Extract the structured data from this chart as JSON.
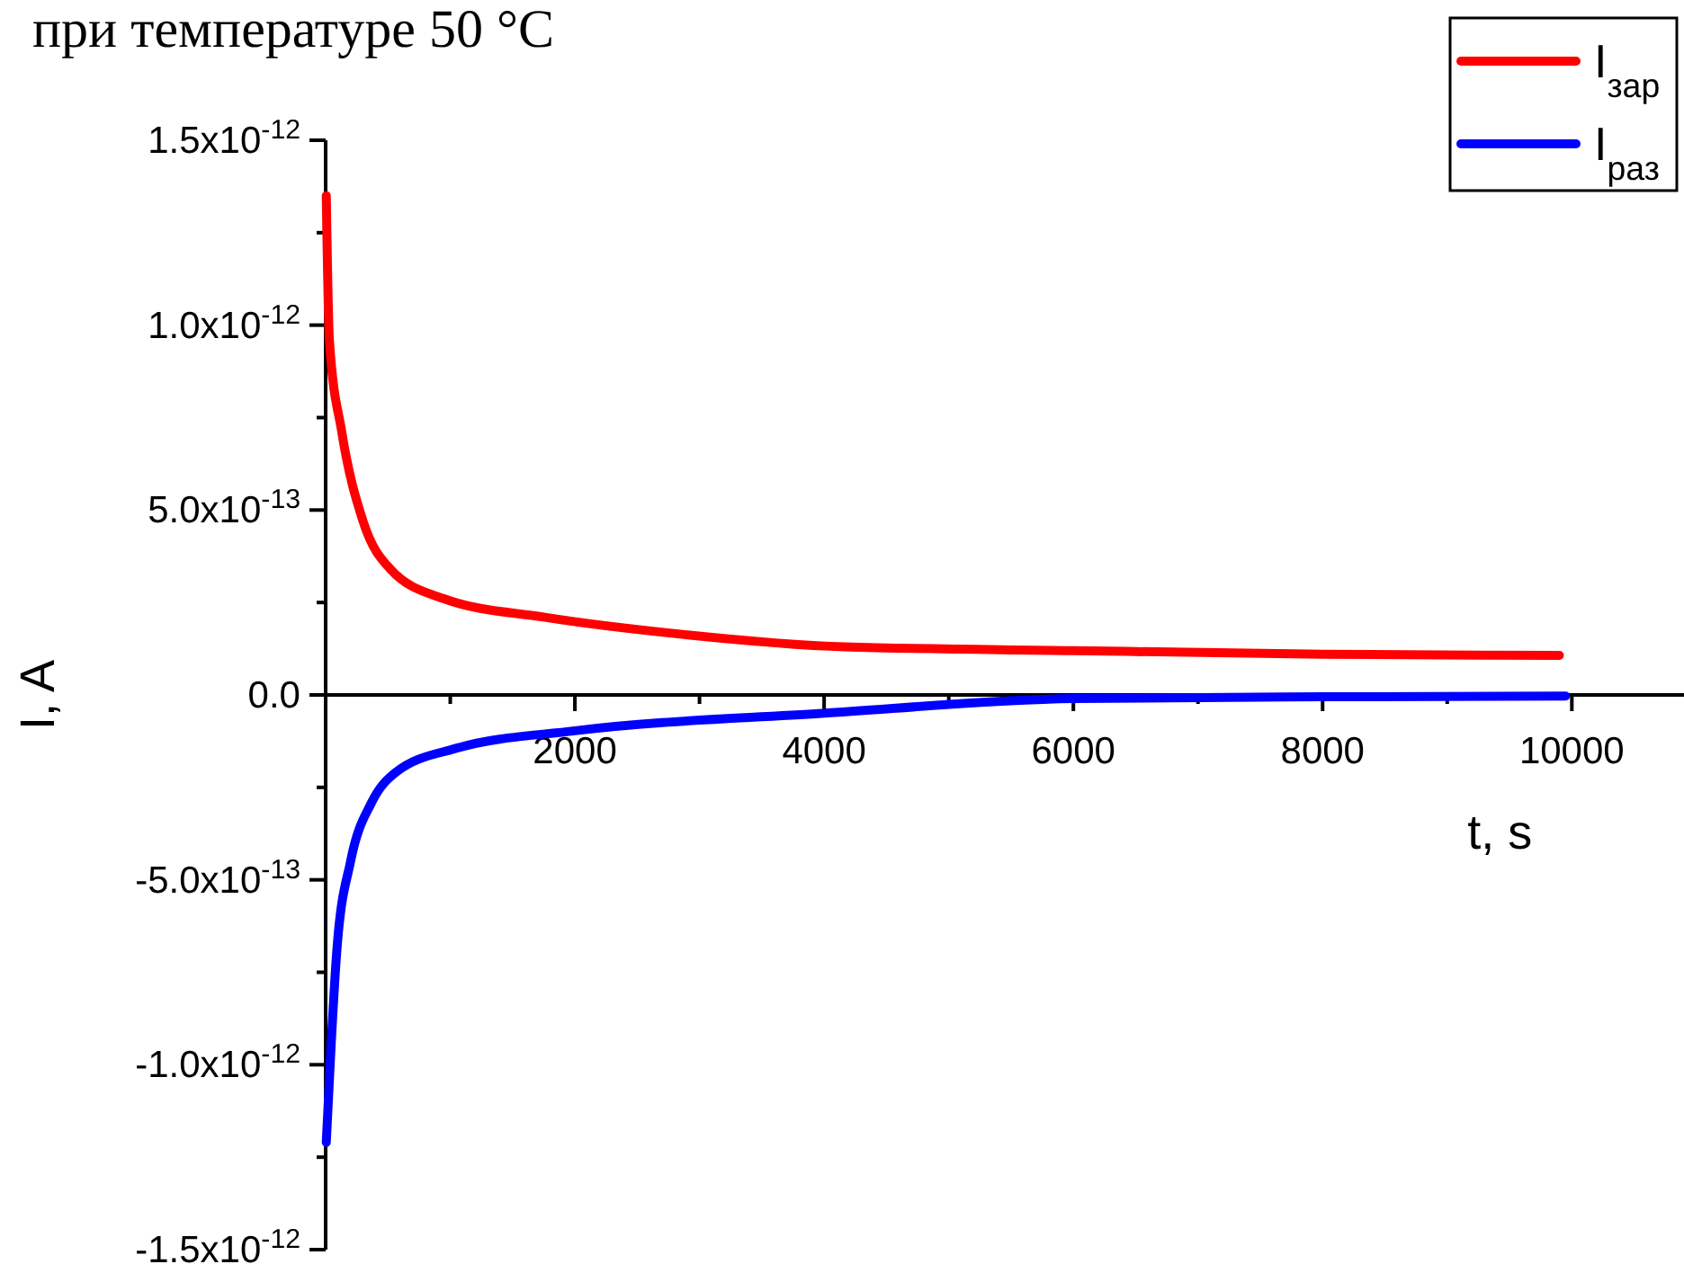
{
  "chart_data": {
    "type": "line",
    "title": "при температуре 50 °C",
    "xlabel": "t, s",
    "ylabel": "I, A",
    "xlim": [
      0,
      10900
    ],
    "ylim": [
      -1.5e-12,
      1.5e-12
    ],
    "xticks": [
      {
        "value": 1000,
        "label": null
      },
      2000,
      {
        "value": 3000,
        "label": null
      },
      4000,
      {
        "value": 5000,
        "label": null
      },
      6000,
      {
        "value": 7000,
        "label": null
      },
      8000,
      {
        "value": 9000,
        "label": null
      },
      10000
    ],
    "yticks": [
      {
        "value": -1.5e-12,
        "label": "-1.5x10$^{-12}$"
      },
      {
        "value": -1.25e-12,
        "label": null
      },
      {
        "value": -1e-12,
        "label": "-1.0x10$^{-12}$"
      },
      {
        "value": -7.5e-13,
        "label": null
      },
      {
        "value": -5e-13,
        "label": "-5.0x10$^{-13}$"
      },
      {
        "value": -2.5e-13,
        "label": null
      },
      {
        "value": 0,
        "label": "0.0"
      },
      {
        "value": 2.5e-13,
        "label": null
      },
      {
        "value": 5e-13,
        "label": "5.0x10$^{-13}$"
      },
      {
        "value": 7.5e-13,
        "label": null
      },
      {
        "value": 1e-12,
        "label": "1.0x10$^{-12}$"
      },
      {
        "value": 1.25e-12,
        "label": null
      },
      {
        "value": 1.5e-12,
        "label": "1.5x10$^{-12}$"
      }
    ],
    "legend": "top right",
    "grid": false,
    "marker": "none",
    "line_style": "solid",
    "series": [
      {
        "name": "I$_{зар}$",
        "color": "#ff0000",
        "x": [
          5,
          30,
          130,
          300,
          520,
          950,
          1760,
          2830,
          4170,
          6000,
          8000,
          9900
        ],
        "values": [
          1.35e-12,
          9.6e-13,
          7.1e-13,
          4.7e-13,
          3.4e-13,
          2.6e-13,
          2.1e-13,
          1.65e-13,
          1.3e-13,
          1.2e-13,
          1.1e-13,
          1.07e-13
        ]
      },
      {
        "name": "I$_{раз}$",
        "color": "#0000ff",
        "x": [
          5,
          45,
          90,
          200,
          370,
          560,
          1040,
          2000,
          3980,
          6000,
          8000,
          9950
        ],
        "values": [
          -1.21e-12,
          -9.4e-13,
          -6.9e-13,
          -4.5e-13,
          -2.9e-13,
          -2.1e-13,
          -1.45e-13,
          -9.7e-14,
          -5e-14,
          -1e-14,
          -5e-15,
          -3e-15
        ]
      }
    ]
  }
}
